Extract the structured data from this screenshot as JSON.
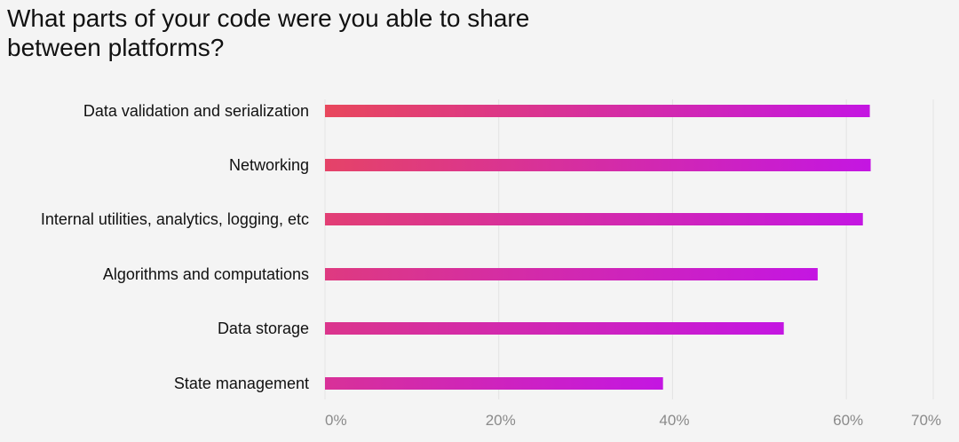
{
  "chart_data": {
    "type": "bar",
    "orientation": "horizontal",
    "title": "What parts of your code were you able to share between platforms?",
    "categories": [
      "Data validation and serialization",
      "Networking",
      "Internal utilities, analytics, logging, etc",
      "Algorithms and computations",
      "Data storage",
      "State management"
    ],
    "values": [
      62.7,
      62.8,
      61.9,
      56.7,
      52.8,
      38.9
    ],
    "xlabel": "",
    "ylabel": "",
    "xlim": [
      0,
      70
    ],
    "xticks": [
      0,
      20,
      40,
      60,
      70
    ],
    "xtick_labels": [
      "0%",
      "20%",
      "40%",
      "60%",
      "70%"
    ],
    "grid": true,
    "colors": {
      "gradient_start": "#e8475c",
      "gradient_end": "#c416e2",
      "grid": "#e3e3e3"
    }
  }
}
